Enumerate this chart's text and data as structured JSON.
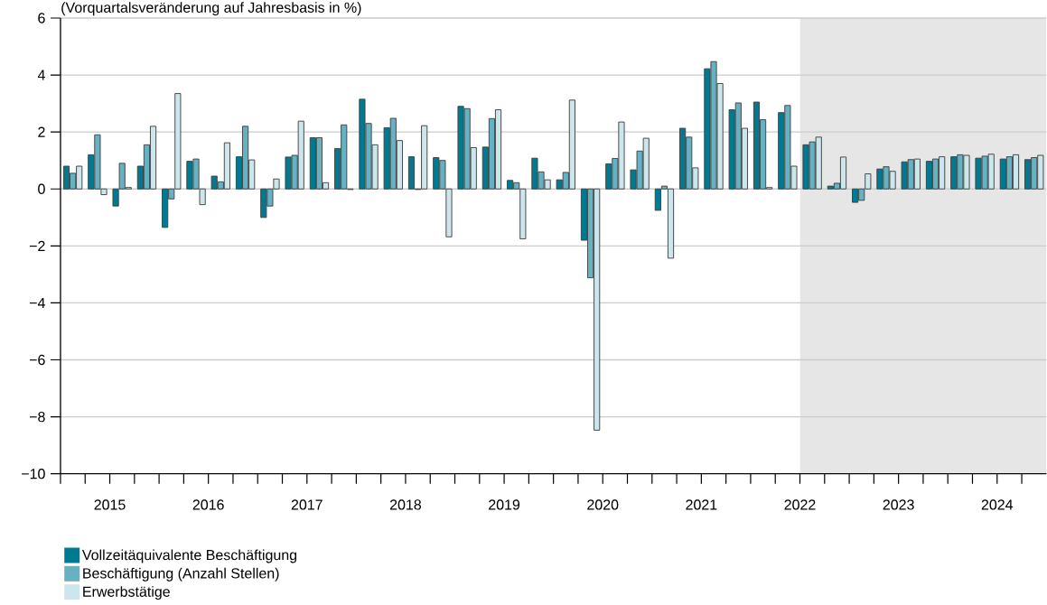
{
  "chart_data": {
    "type": "bar",
    "subtitle": "(Vorquartalsveränderung auf Jahresbasis in %)",
    "x": [
      2015.125,
      2015.375,
      2015.625,
      2015.875,
      2016.125,
      2016.375,
      2016.625,
      2016.875,
      2017.125,
      2017.375,
      2017.625,
      2017.875,
      2018.125,
      2018.375,
      2018.625,
      2018.875,
      2019.125,
      2019.375,
      2019.625,
      2019.875,
      2020.125,
      2020.375,
      2020.625,
      2020.875,
      2021.125,
      2021.375,
      2021.625,
      2021.875,
      2022.125,
      2022.375,
      2022.625,
      2022.875,
      2023.125,
      2023.375,
      2023.625,
      2023.875,
      2024.125,
      2024.375,
      2024.625,
      2024.875
    ],
    "series": [
      {
        "name": "Vollzeitäquivalente Beschäftigung",
        "color": "#007a91",
        "values": [
          0.8,
          1.2,
          -0.6,
          0.8,
          -1.35,
          0.97,
          0.45,
          1.13,
          -1.0,
          1.12,
          1.8,
          1.42,
          3.15,
          2.15,
          1.13,
          1.1,
          2.9,
          1.47,
          0.3,
          1.08,
          0.32,
          -1.8,
          0.88,
          0.67,
          -0.75,
          2.13,
          4.22,
          2.78,
          3.05,
          2.68,
          1.55,
          0.1,
          -0.47,
          0.7,
          0.95,
          0.97,
          1.13,
          1.08,
          1.05,
          1.03
        ]
      },
      {
        "name": "Beschäftigung (Anzahl Stellen)",
        "color": "#66b2c2",
        "values": [
          0.55,
          1.9,
          0.9,
          1.55,
          -0.35,
          1.05,
          0.25,
          2.2,
          -0.6,
          1.18,
          1.8,
          2.25,
          2.3,
          2.48,
          -0.02,
          1.0,
          2.82,
          2.47,
          0.22,
          0.6,
          0.58,
          -3.12,
          1.07,
          1.33,
          0.1,
          1.82,
          4.47,
          3.02,
          2.43,
          2.93,
          1.65,
          0.2,
          -0.4,
          0.78,
          1.03,
          1.05,
          1.2,
          1.15,
          1.13,
          1.1
        ]
      },
      {
        "name": "Erwerbstätige",
        "color": "#cde6ec",
        "values": [
          0.8,
          -0.2,
          0.05,
          2.2,
          3.35,
          -0.55,
          1.62,
          1.02,
          0.35,
          2.38,
          0.22,
          -0.02,
          1.55,
          1.7,
          2.22,
          -1.68,
          1.45,
          2.78,
          -1.75,
          0.32,
          3.12,
          -8.47,
          2.35,
          1.78,
          -2.43,
          0.74,
          3.7,
          2.13,
          0.05,
          0.8,
          1.82,
          1.12,
          0.53,
          0.62,
          1.05,
          1.13,
          1.18,
          1.22,
          1.2,
          1.18
        ]
      }
    ],
    "xlim": [
      2015,
      2025
    ],
    "xticks": [
      {
        "value": 2015,
        "label": null
      },
      {
        "value": 2015.25,
        "label": null
      },
      {
        "value": 2015.5,
        "label": "2015"
      },
      {
        "value": 2015.75,
        "label": null
      },
      {
        "value": 2016,
        "label": null
      },
      {
        "value": 2016.25,
        "label": null
      },
      {
        "value": 2016.5,
        "label": "2016"
      },
      {
        "value": 2016.75,
        "label": null
      },
      {
        "value": 2017,
        "label": null
      },
      {
        "value": 2017.25,
        "label": null
      },
      {
        "value": 2017.5,
        "label": "2017"
      },
      {
        "value": 2017.75,
        "label": null
      },
      {
        "value": 2018,
        "label": null
      },
      {
        "value": 2018.25,
        "label": null
      },
      {
        "value": 2018.5,
        "label": "2018"
      },
      {
        "value": 2018.75,
        "label": null
      },
      {
        "value": 2019,
        "label": null
      },
      {
        "value": 2019.25,
        "label": null
      },
      {
        "value": 2019.5,
        "label": "2019"
      },
      {
        "value": 2019.75,
        "label": null
      },
      {
        "value": 2020,
        "label": null
      },
      {
        "value": 2020.25,
        "label": null
      },
      {
        "value": 2020.5,
        "label": "2020"
      },
      {
        "value": 2020.75,
        "label": null
      },
      {
        "value": 2021,
        "label": null
      },
      {
        "value": 2021.25,
        "label": null
      },
      {
        "value": 2021.5,
        "label": "2021"
      },
      {
        "value": 2021.75,
        "label": null
      },
      {
        "value": 2022,
        "label": null
      },
      {
        "value": 2022.25,
        "label": null
      },
      {
        "value": 2022.5,
        "label": "2022"
      },
      {
        "value": 2022.75,
        "label": null
      },
      {
        "value": 2023,
        "label": null
      },
      {
        "value": 2023.25,
        "label": null
      },
      {
        "value": 2023.5,
        "label": "2023"
      },
      {
        "value": 2023.75,
        "label": null
      },
      {
        "value": 2024,
        "label": null
      },
      {
        "value": 2024.25,
        "label": null
      },
      {
        "value": 2024.5,
        "label": "2024"
      },
      {
        "value": 2024.75,
        "label": null
      }
    ],
    "ylim": [
      -10,
      6
    ],
    "yticks": [
      {
        "value": -10,
        "label": "−10"
      },
      {
        "value": -8,
        "label": "−8"
      },
      {
        "value": -6,
        "label": "−6"
      },
      {
        "value": -4,
        "label": "−4"
      },
      {
        "value": -2,
        "label": "−2"
      },
      0,
      2,
      4,
      6
    ],
    "bands": [
      {
        "axis": "x",
        "from": 2022.5,
        "to": 2025,
        "color": "#e6e6e6"
      }
    ],
    "grid": "y",
    "legend": "bottom left"
  }
}
